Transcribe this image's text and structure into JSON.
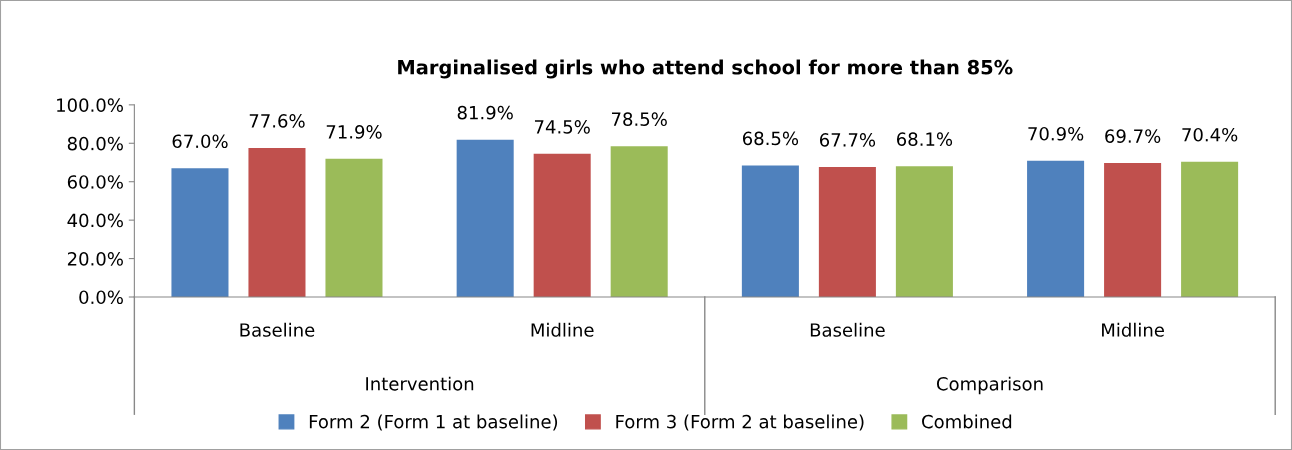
{
  "chart_data": {
    "type": "bar",
    "title": "Marginalised girls who attend school for more than 85%",
    "categories": [
      "Baseline",
      "Midline",
      "Baseline",
      "Midline"
    ],
    "annotations": [
      "Intervention",
      "Comparison"
    ],
    "series": [
      {
        "name": "Form 2 (Form 1 at baseline)",
        "color": "#4f81bd",
        "values": [
          67.0,
          81.9,
          68.5,
          70.9
        ],
        "value_labels": [
          "67.0%",
          "81.9%",
          "68.5%",
          "70.9%"
        ]
      },
      {
        "name": "Form 3 (Form 2 at baseline)",
        "color": "#c0504d",
        "values": [
          77.6,
          74.5,
          67.7,
          69.7
        ],
        "value_labels": [
          "77.6%",
          "74.5%",
          "67.7%",
          "69.7%"
        ]
      },
      {
        "name": "Combined",
        "color": "#9bbb59",
        "values": [
          71.9,
          78.5,
          68.1,
          70.4
        ],
        "value_labels": [
          "71.9%",
          "78.5%",
          "68.1%",
          "70.4%"
        ]
      }
    ],
    "ylim": [
      0,
      100
    ],
    "yticks": [
      {
        "value": 0,
        "label": "0.0%"
      },
      {
        "value": 20,
        "label": "20.0%"
      },
      {
        "value": 40,
        "label": "40.0%"
      },
      {
        "value": 60,
        "label": "60.0%"
      },
      {
        "value": 80,
        "label": "80.0%"
      },
      {
        "value": 100,
        "label": "100.0%"
      }
    ],
    "grid": false,
    "legend": "bottom"
  }
}
